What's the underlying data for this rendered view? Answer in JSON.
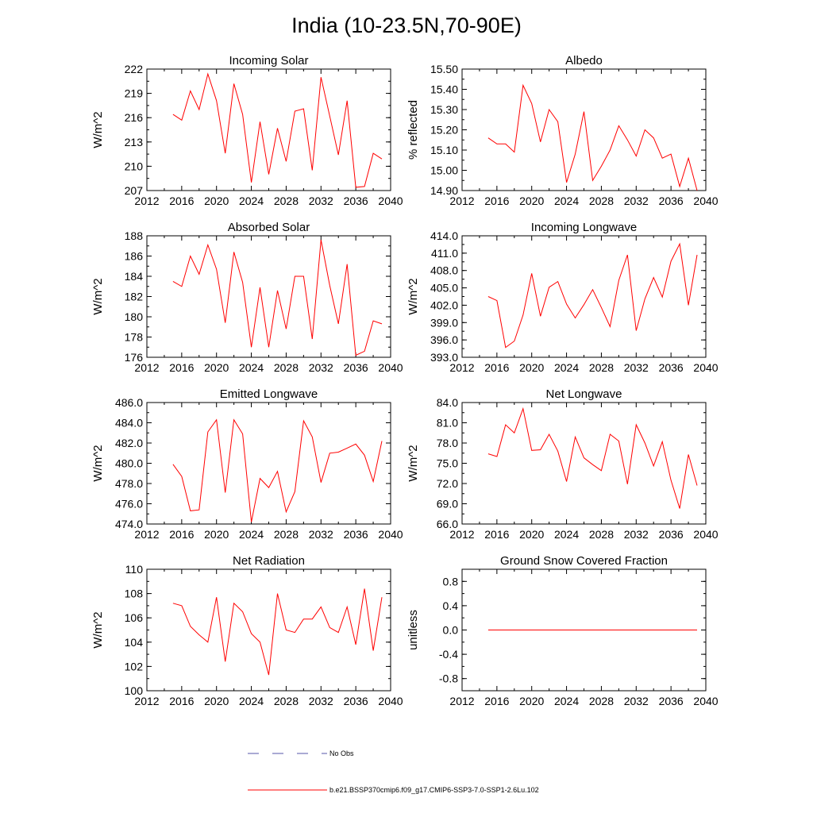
{
  "title": "India (10-23.5N,70-90E)",
  "colors": {
    "model": "#ff0000",
    "obs": "#5555aa",
    "axis": "#000000"
  },
  "legend": {
    "obs_label": "No Obs",
    "model_label": "b.e21.BSSP370cmip6.f09_g17.CMIP6-SSP3-7.0-SSP1-2.6Lu.102"
  },
  "chart_data": [
    {
      "type": "line",
      "title": "Incoming Solar",
      "ylabel": "W/m^2",
      "xlim": [
        2012,
        2040
      ],
      "xticks": [
        "2012",
        "2016",
        "2020",
        "2024",
        "2028",
        "2032",
        "2036",
        "2040"
      ],
      "ylim": [
        207,
        222
      ],
      "yticks": [
        "207",
        "210",
        "213",
        "216",
        "219",
        "222"
      ],
      "x": [
        2015,
        2016,
        2017,
        2018,
        2019,
        2020,
        2021,
        2022,
        2023,
        2024,
        2025,
        2026,
        2027,
        2028,
        2029,
        2030,
        2031,
        2032,
        2033,
        2034,
        2035,
        2036,
        2037,
        2038,
        2039
      ],
      "series": [
        {
          "values": [
            216.4,
            215.7,
            219.3,
            217.0,
            221.4,
            218.1,
            211.6,
            220.2,
            216.4,
            208.0,
            215.5,
            209.0,
            214.7,
            210.6,
            216.8,
            217.1,
            209.5,
            221.0,
            216.2,
            211.4,
            218.1,
            207.4,
            207.5,
            211.6,
            210.9
          ]
        }
      ]
    },
    {
      "type": "line",
      "title": "Albedo",
      "ylabel": "% reflected",
      "xlim": [
        2012,
        2040
      ],
      "xticks": [
        "2012",
        "2016",
        "2020",
        "2024",
        "2028",
        "2032",
        "2036",
        "2040"
      ],
      "ylim": [
        14.9,
        15.5
      ],
      "yticks": [
        "14.90",
        "15.00",
        "15.10",
        "15.20",
        "15.30",
        "15.40",
        "15.50"
      ],
      "x": [
        2015,
        2016,
        2017,
        2018,
        2019,
        2020,
        2021,
        2022,
        2023,
        2024,
        2025,
        2026,
        2027,
        2028,
        2029,
        2030,
        2031,
        2032,
        2033,
        2034,
        2035,
        2036,
        2037,
        2038,
        2039
      ],
      "series": [
        {
          "values": [
            15.16,
            15.13,
            15.13,
            15.09,
            15.42,
            15.33,
            15.14,
            15.3,
            15.24,
            14.94,
            15.08,
            15.29,
            14.95,
            15.02,
            15.1,
            15.22,
            15.15,
            15.07,
            15.2,
            15.16,
            15.06,
            15.08,
            14.92,
            15.06,
            14.9
          ]
        }
      ]
    },
    {
      "type": "line",
      "title": "Absorbed Solar",
      "ylabel": "W/m^2",
      "xlim": [
        2012,
        2040
      ],
      "xticks": [
        "2012",
        "2016",
        "2020",
        "2024",
        "2028",
        "2032",
        "2036",
        "2040"
      ],
      "ylim": [
        176,
        188
      ],
      "yticks": [
        "176",
        "178",
        "180",
        "182",
        "184",
        "186",
        "188"
      ],
      "x": [
        2015,
        2016,
        2017,
        2018,
        2019,
        2020,
        2021,
        2022,
        2023,
        2024,
        2025,
        2026,
        2027,
        2028,
        2029,
        2030,
        2031,
        2032,
        2033,
        2034,
        2035,
        2036,
        2037,
        2038,
        2039
      ],
      "series": [
        {
          "values": [
            183.5,
            183.0,
            186.0,
            184.2,
            187.1,
            184.7,
            179.4,
            186.4,
            183.4,
            177.0,
            182.9,
            177.0,
            182.6,
            178.8,
            184.0,
            184.0,
            177.8,
            187.6,
            183.1,
            179.3,
            185.2,
            176.2,
            176.6,
            179.6,
            179.3
          ]
        }
      ]
    },
    {
      "type": "line",
      "title": "Incoming Longwave",
      "ylabel": "W/m^2",
      "xlim": [
        2012,
        2040
      ],
      "xticks": [
        "2012",
        "2016",
        "2020",
        "2024",
        "2028",
        "2032",
        "2036",
        "2040"
      ],
      "ylim": [
        393.0,
        414.0
      ],
      "yticks": [
        "393.0",
        "396.0",
        "399.0",
        "402.0",
        "405.0",
        "408.0",
        "411.0",
        "414.0"
      ],
      "x": [
        2015,
        2016,
        2017,
        2018,
        2019,
        2020,
        2021,
        2022,
        2023,
        2024,
        2025,
        2026,
        2027,
        2028,
        2029,
        2030,
        2031,
        2032,
        2033,
        2034,
        2035,
        2036,
        2037,
        2038,
        2039
      ],
      "series": [
        {
          "values": [
            403.5,
            402.8,
            394.7,
            395.8,
            400.3,
            407.5,
            400.1,
            405.1,
            406.1,
            402.2,
            399.8,
            402.1,
            404.7,
            401.6,
            398.3,
            406.3,
            410.7,
            397.6,
            403.1,
            406.8,
            403.4,
            409.6,
            412.6,
            402.0,
            410.7
          ]
        }
      ]
    },
    {
      "type": "line",
      "title": "Emitted Longwave",
      "ylabel": "W/m^2",
      "xlim": [
        2012,
        2040
      ],
      "xticks": [
        "2012",
        "2016",
        "2020",
        "2024",
        "2028",
        "2032",
        "2036",
        "2040"
      ],
      "ylim": [
        474.0,
        486.0
      ],
      "yticks": [
        "474.0",
        "476.0",
        "478.0",
        "480.0",
        "482.0",
        "484.0",
        "486.0"
      ],
      "x": [
        2015,
        2016,
        2017,
        2018,
        2019,
        2020,
        2021,
        2022,
        2023,
        2024,
        2025,
        2026,
        2027,
        2028,
        2029,
        2030,
        2031,
        2032,
        2033,
        2034,
        2035,
        2036,
        2037,
        2038,
        2039
      ],
      "series": [
        {
          "values": [
            479.9,
            478.7,
            475.3,
            475.4,
            483.1,
            484.3,
            477.1,
            484.3,
            482.9,
            474.2,
            478.5,
            477.6,
            479.2,
            475.2,
            477.2,
            484.2,
            482.6,
            478.1,
            481.0,
            481.1,
            481.5,
            481.9,
            480.8,
            478.2,
            482.2
          ]
        }
      ]
    },
    {
      "type": "line",
      "title": "Net Longwave",
      "ylabel": "W/m^2",
      "xlim": [
        2012,
        2040
      ],
      "xticks": [
        "2012",
        "2016",
        "2020",
        "2024",
        "2028",
        "2032",
        "2036",
        "2040"
      ],
      "ylim": [
        66.0,
        84.0
      ],
      "yticks": [
        "66.0",
        "69.0",
        "72.0",
        "75.0",
        "78.0",
        "81.0",
        "84.0"
      ],
      "x": [
        2015,
        2016,
        2017,
        2018,
        2019,
        2020,
        2021,
        2022,
        2023,
        2024,
        2025,
        2026,
        2027,
        2028,
        2029,
        2030,
        2031,
        2032,
        2033,
        2034,
        2035,
        2036,
        2037,
        2038,
        2039
      ],
      "series": [
        {
          "values": [
            76.4,
            76.0,
            80.7,
            79.5,
            83.1,
            76.9,
            77.0,
            79.3,
            76.8,
            72.3,
            78.9,
            75.8,
            74.8,
            73.9,
            79.3,
            78.3,
            71.9,
            80.7,
            78.0,
            74.6,
            78.2,
            72.5,
            68.3,
            76.3,
            71.7
          ]
        }
      ]
    },
    {
      "type": "line",
      "title": "Net Radiation",
      "ylabel": "W/m^2",
      "xlim": [
        2012,
        2040
      ],
      "xticks": [
        "2012",
        "2016",
        "2020",
        "2024",
        "2028",
        "2032",
        "2036",
        "2040"
      ],
      "ylim": [
        100,
        110
      ],
      "yticks": [
        "100",
        "102",
        "104",
        "106",
        "108",
        "110"
      ],
      "x": [
        2015,
        2016,
        2017,
        2018,
        2019,
        2020,
        2021,
        2022,
        2023,
        2024,
        2025,
        2026,
        2027,
        2028,
        2029,
        2030,
        2031,
        2032,
        2033,
        2034,
        2035,
        2036,
        2037,
        2038,
        2039
      ],
      "series": [
        {
          "values": [
            107.2,
            107.0,
            105.3,
            104.6,
            104.0,
            107.7,
            102.4,
            107.2,
            106.5,
            104.7,
            104.0,
            101.3,
            108.0,
            105.0,
            104.8,
            105.9,
            105.9,
            106.9,
            105.2,
            104.8,
            106.9,
            103.8,
            108.4,
            103.3,
            107.7
          ]
        }
      ]
    },
    {
      "type": "line",
      "title": "Ground Snow Covered Fraction",
      "ylabel": "unitless",
      "xlim": [
        2012,
        2040
      ],
      "xticks": [
        "2012",
        "2016",
        "2020",
        "2024",
        "2028",
        "2032",
        "2036",
        "2040"
      ],
      "ylim": [
        -1.0,
        1.0
      ],
      "yticks": [
        "-0.8",
        "-0.4",
        "0.0",
        "0.4",
        "0.8"
      ],
      "ytick_values": [
        -0.8,
        -0.4,
        0.0,
        0.4,
        0.8
      ],
      "x": [
        2015,
        2016,
        2017,
        2018,
        2019,
        2020,
        2021,
        2022,
        2023,
        2024,
        2025,
        2026,
        2027,
        2028,
        2029,
        2030,
        2031,
        2032,
        2033,
        2034,
        2035,
        2036,
        2037,
        2038,
        2039
      ],
      "series": [
        {
          "values": [
            0,
            0,
            0,
            0,
            0,
            0,
            0,
            0,
            0,
            0,
            0,
            0,
            0,
            0,
            0,
            0,
            0,
            0,
            0,
            0,
            0,
            0,
            0,
            0,
            0
          ]
        }
      ]
    }
  ]
}
